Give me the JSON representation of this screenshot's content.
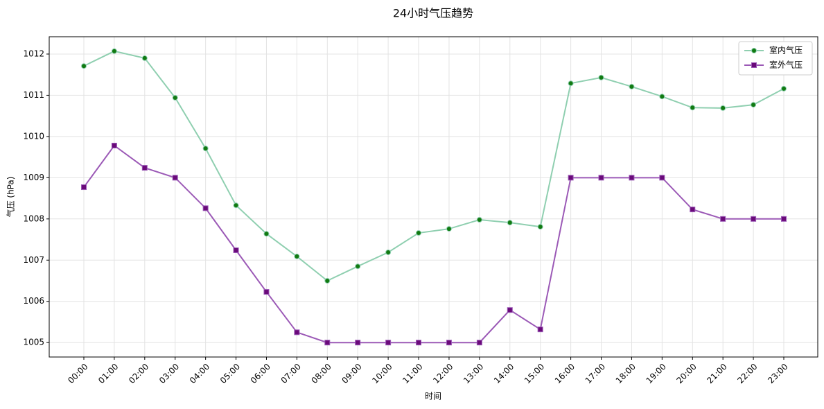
{
  "chart_data": {
    "type": "line",
    "title": "24小时气压趋势",
    "x_label": "时间",
    "y_label": "气压 (hPa)",
    "categories": [
      "00:00",
      "01:00",
      "02:00",
      "03:00",
      "04:00",
      "05:00",
      "06:00",
      "07:00",
      "08:00",
      "09:00",
      "10:00",
      "11:00",
      "12:00",
      "13:00",
      "14:00",
      "15:00",
      "16:00",
      "17:00",
      "18:00",
      "19:00",
      "20:00",
      "21:00",
      "22:00",
      "23:00"
    ],
    "series": [
      {
        "name": "室内气压",
        "color": "#8fcfb0",
        "marker_color": "#117a11",
        "marker": "circle",
        "values": [
          1011.71,
          1012.07,
          1011.9,
          1010.94,
          1009.71,
          1008.33,
          1007.64,
          1007.09,
          1006.5,
          1006.85,
          1007.19,
          1007.66,
          1007.76,
          1007.98,
          1007.91,
          1007.81,
          1011.29,
          1011.43,
          1011.21,
          1010.97,
          1010.7,
          1010.69,
          1010.77,
          1011.16
        ]
      },
      {
        "name": "室外气压",
        "color": "#9b59b6",
        "marker_color": "#6a0a7a",
        "marker": "square",
        "values": [
          1008.77,
          1009.78,
          1009.24,
          1009.0,
          1008.26,
          1007.24,
          1006.23,
          1005.25,
          1005,
          1005,
          1005,
          1005,
          1005,
          1005,
          1005.79,
          1005.32,
          1009,
          1009,
          1009,
          1009,
          1008.23,
          1008,
          1008,
          1008
        ]
      }
    ],
    "ylim": [
      1004.65,
      1012.42
    ],
    "yticks": [
      1005,
      1006,
      1007,
      1008,
      1009,
      1010,
      1011,
      1012
    ],
    "grid": true,
    "legend": "upper right"
  }
}
